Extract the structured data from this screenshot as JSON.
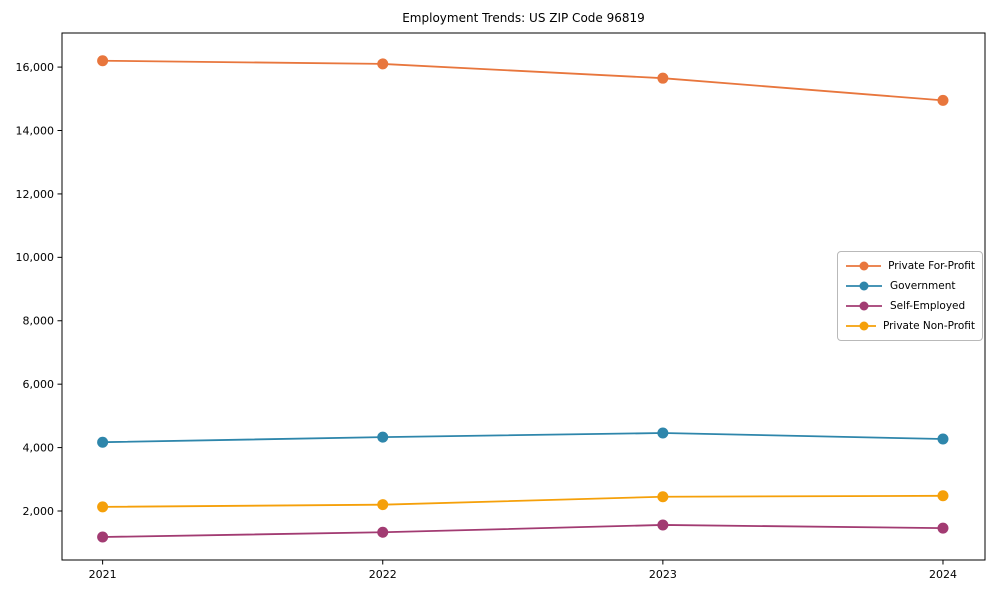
{
  "figure": {
    "background": "#ffffff",
    "spine_color": "#000000",
    "text_color": "#000000"
  },
  "chart_data": {
    "type": "line",
    "title": "Employment Trends: US ZIP Code 96819",
    "xlabel": "",
    "ylabel": "",
    "grid": false,
    "x": [
      2021,
      2022,
      2023,
      2024
    ],
    "x_tick_labels": [
      "2021",
      "2022",
      "2023",
      "2024"
    ],
    "series": [
      {
        "name": "Private For-Profit",
        "color": "#e8763d",
        "values": [
          16200,
          16100,
          15650,
          14950
        ]
      },
      {
        "name": "Government",
        "color": "#2e86ab",
        "values": [
          4170,
          4330,
          4460,
          4270
        ]
      },
      {
        "name": "Self-Employed",
        "color": "#a23b72",
        "values": [
          1180,
          1330,
          1560,
          1460
        ]
      },
      {
        "name": "Private Non-Profit",
        "color": "#f5a00a",
        "values": [
          2130,
          2200,
          2450,
          2480
        ]
      }
    ],
    "yticks": [
      2000,
      4000,
      6000,
      8000,
      10000,
      12000,
      14000,
      16000
    ],
    "ytick_labels": [
      "2,000",
      "4,000",
      "6,000",
      "8,000",
      "10,000",
      "12,000",
      "14,000",
      "16,000"
    ],
    "xlim": [
      2020.855,
      2024.15
    ],
    "ylim": [
      455,
      17075
    ],
    "legend": {
      "position": "center-right",
      "border_color": "#b9b9b9"
    }
  }
}
